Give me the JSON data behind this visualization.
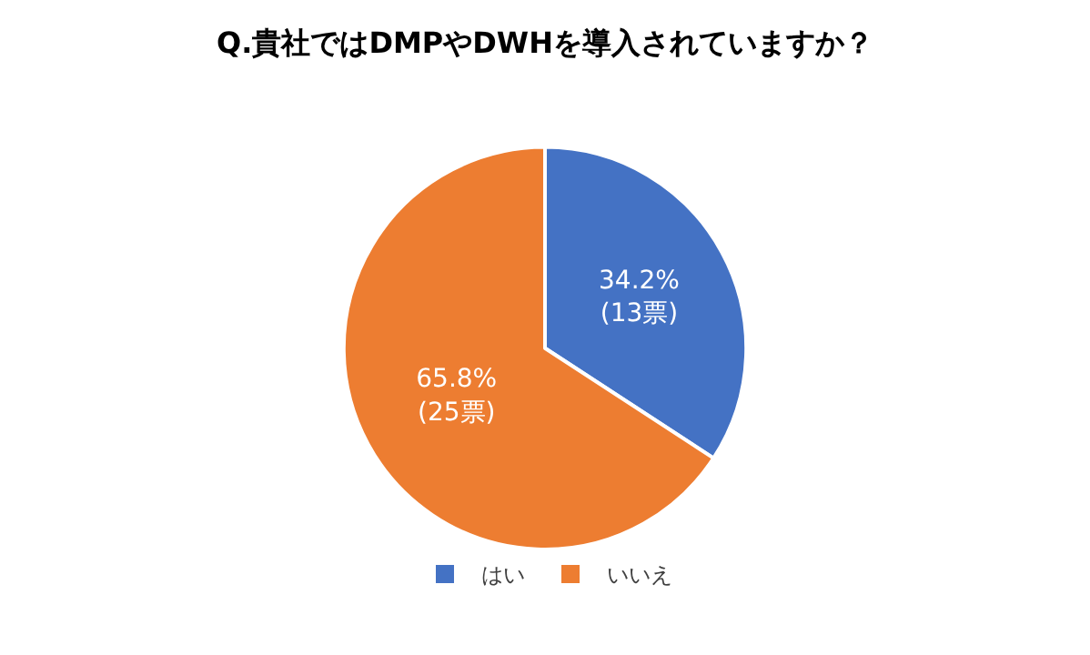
{
  "chart_data": {
    "type": "pie",
    "title": "Q.貴社ではDMPやDWHを導入されていますか？",
    "categories": [
      "はい",
      "いいえ"
    ],
    "values": [
      34.2,
      65.8
    ],
    "value_labels": [
      "34.2%\n(13票)",
      "65.8%\n(25票)"
    ],
    "colors": [
      "#4472c4",
      "#ed7d31"
    ],
    "legend": "bottom"
  }
}
